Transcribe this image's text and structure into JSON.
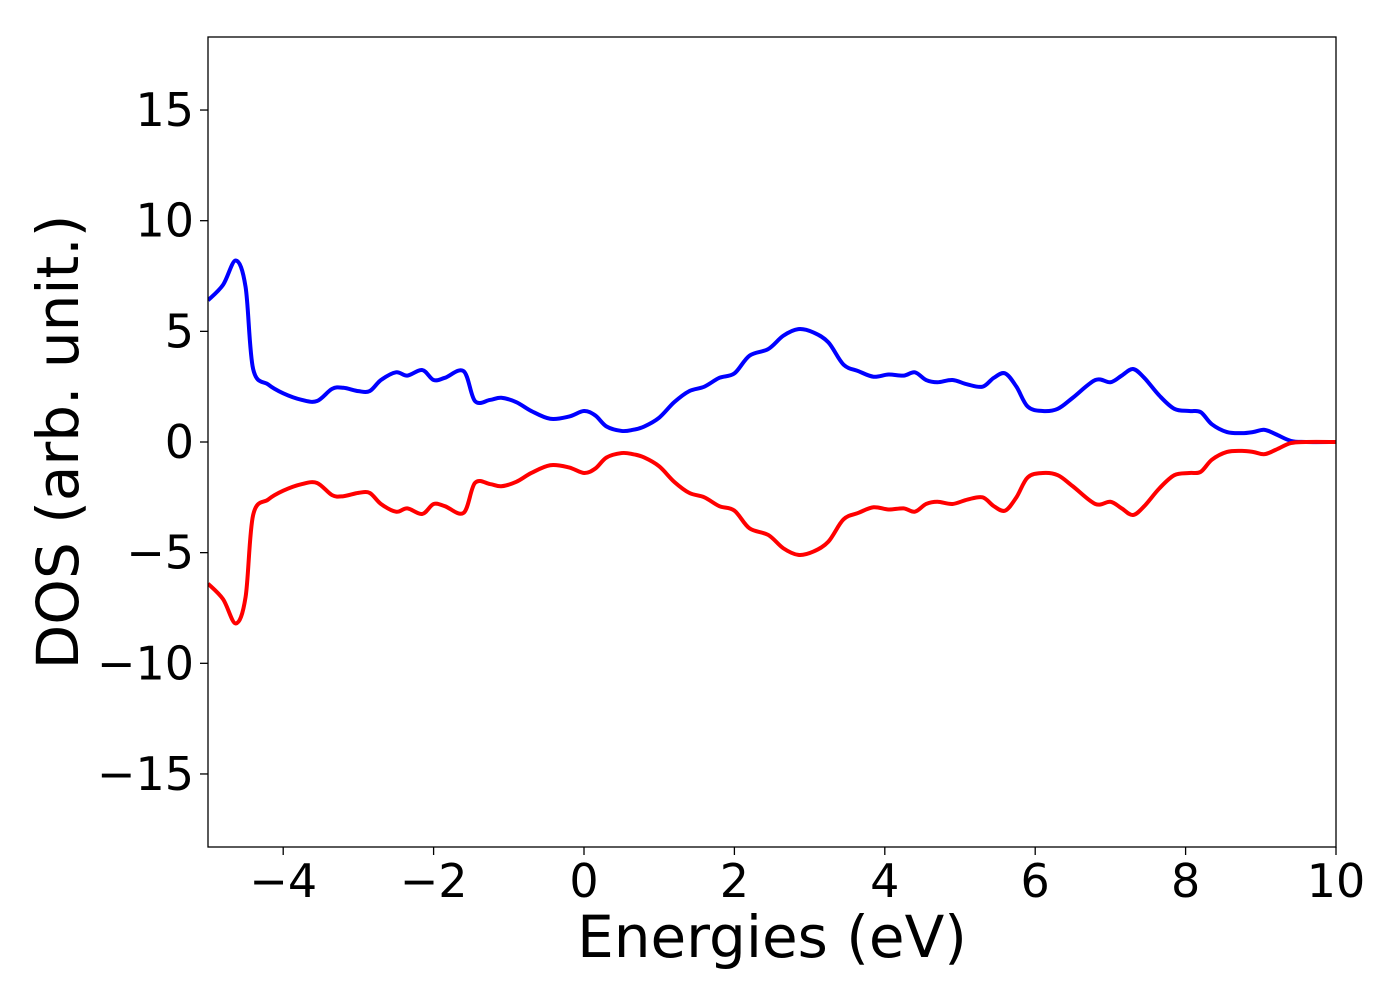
{
  "chart_data": {
    "type": "line",
    "title": "",
    "xlabel": "Energies (eV)",
    "ylabel": "DOS (arb. unit.)",
    "xlim": [
      -5,
      10
    ],
    "ylim": [
      -18.3,
      18.3
    ],
    "grid": false,
    "legend": "none",
    "xticks": [
      {
        "value": -4,
        "label": "−4"
      },
      {
        "value": -2,
        "label": "−2"
      },
      {
        "value": 0,
        "label": "0"
      },
      {
        "value": 2,
        "label": "2"
      },
      {
        "value": 4,
        "label": "4"
      },
      {
        "value": 6,
        "label": "6"
      },
      {
        "value": 8,
        "label": "8"
      },
      {
        "value": 10,
        "label": "10"
      }
    ],
    "yticks": [
      {
        "value": 15,
        "label": "15"
      },
      {
        "value": 10,
        "label": "10"
      },
      {
        "value": 5,
        "label": "5"
      },
      {
        "value": 0,
        "label": "0"
      },
      {
        "value": -5,
        "label": "−5"
      },
      {
        "value": -10,
        "label": "−10"
      },
      {
        "value": -15,
        "label": "−15"
      }
    ],
    "x": [
      -5.0,
      -4.8,
      -4.63,
      -4.5,
      -4.4,
      -4.2,
      -4.0,
      -3.75,
      -3.55,
      -3.35,
      -3.2,
      -3.0,
      -2.85,
      -2.7,
      -2.5,
      -2.35,
      -2.15,
      -2.0,
      -1.85,
      -1.6,
      -1.45,
      -1.25,
      -1.1,
      -0.9,
      -0.7,
      -0.45,
      -0.2,
      0.0,
      0.15,
      0.3,
      0.5,
      0.65,
      0.8,
      1.0,
      1.2,
      1.4,
      1.6,
      1.8,
      2.0,
      2.2,
      2.45,
      2.65,
      2.85,
      3.05,
      3.25,
      3.45,
      3.65,
      3.85,
      4.05,
      4.25,
      4.4,
      4.55,
      4.7,
      4.9,
      5.1,
      5.3,
      5.45,
      5.6,
      5.75,
      5.9,
      6.1,
      6.3,
      6.5,
      6.8,
      7.0,
      7.15,
      7.3,
      7.45,
      7.65,
      7.85,
      8.05,
      8.2,
      8.35,
      8.55,
      8.75,
      8.9,
      9.05,
      9.2,
      9.4,
      9.6,
      10.0
    ],
    "series": [
      {
        "color": "#0000ff",
        "values": [
          6.4,
          7.1,
          8.2,
          7.0,
          3.3,
          2.6,
          2.2,
          1.9,
          1.85,
          2.4,
          2.45,
          2.3,
          2.3,
          2.8,
          3.15,
          3.0,
          3.25,
          2.8,
          2.9,
          3.2,
          1.85,
          1.9,
          2.0,
          1.8,
          1.4,
          1.05,
          1.15,
          1.4,
          1.2,
          0.7,
          0.5,
          0.55,
          0.7,
          1.1,
          1.8,
          2.3,
          2.5,
          2.9,
          3.1,
          3.9,
          4.2,
          4.8,
          5.1,
          4.95,
          4.5,
          3.5,
          3.2,
          2.95,
          3.05,
          3.0,
          3.15,
          2.8,
          2.7,
          2.8,
          2.6,
          2.5,
          2.9,
          3.1,
          2.5,
          1.6,
          1.4,
          1.5,
          2.0,
          2.8,
          2.7,
          3.0,
          3.3,
          2.9,
          2.1,
          1.5,
          1.4,
          1.35,
          0.8,
          0.45,
          0.4,
          0.45,
          0.55,
          0.35,
          0.05,
          0.0,
          0.0
        ]
      },
      {
        "color": "#ff0000",
        "values": [
          -6.4,
          -7.1,
          -8.2,
          -7.0,
          -3.3,
          -2.6,
          -2.2,
          -1.9,
          -1.85,
          -2.4,
          -2.45,
          -2.3,
          -2.3,
          -2.8,
          -3.15,
          -3.0,
          -3.25,
          -2.8,
          -2.9,
          -3.2,
          -1.85,
          -1.9,
          -2.0,
          -1.8,
          -1.4,
          -1.05,
          -1.15,
          -1.4,
          -1.2,
          -0.7,
          -0.5,
          -0.55,
          -0.7,
          -1.1,
          -1.8,
          -2.3,
          -2.5,
          -2.9,
          -3.1,
          -3.9,
          -4.2,
          -4.8,
          -5.1,
          -4.95,
          -4.5,
          -3.5,
          -3.2,
          -2.95,
          -3.05,
          -3.0,
          -3.15,
          -2.8,
          -2.7,
          -2.8,
          -2.6,
          -2.5,
          -2.9,
          -3.1,
          -2.5,
          -1.6,
          -1.4,
          -1.5,
          -2.0,
          -2.8,
          -2.7,
          -3.0,
          -3.3,
          -2.9,
          -2.1,
          -1.5,
          -1.4,
          -1.35,
          -0.8,
          -0.45,
          -0.4,
          -0.45,
          -0.55,
          -0.35,
          -0.05,
          0.0,
          0.0
        ]
      }
    ]
  }
}
